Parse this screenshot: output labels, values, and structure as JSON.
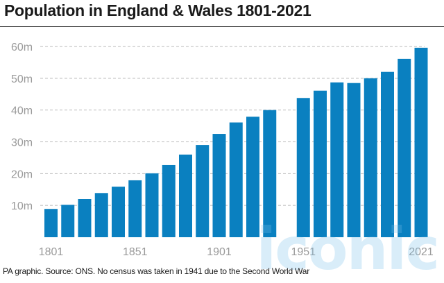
{
  "header": {
    "title": "Population in England & Wales 1801-2021"
  },
  "footer": {
    "source": "PA graphic. Source: ONS. No census was taken in 1941 due to the Second World War"
  },
  "watermark": {
    "text": "iconic"
  },
  "colors": {
    "bar": "#0a80c0",
    "grid": "#b8b8b8",
    "tick_text": "#9a9a9a"
  },
  "chart_data": {
    "type": "bar",
    "title": "Population in England & Wales 1801-2021",
    "xlabel": "",
    "ylabel": "",
    "ylim": [
      0,
      60
    ],
    "y_unit": "m",
    "y_ticks": [
      10,
      20,
      30,
      40,
      50,
      60
    ],
    "y_tick_labels": [
      "10m",
      "20m",
      "30m",
      "40m",
      "50m",
      "60m"
    ],
    "x_tick_labels": [
      "1801",
      "1851",
      "1901",
      "1951",
      "2021"
    ],
    "grid": true,
    "categories": [
      "1801",
      "1811",
      "1821",
      "1831",
      "1841",
      "1851",
      "1861",
      "1871",
      "1881",
      "1891",
      "1901",
      "1911",
      "1921",
      "1931",
      "1941",
      "1951",
      "1961",
      "1971",
      "1981",
      "1991",
      "2001",
      "2011",
      "2021"
    ],
    "values": [
      8.9,
      10.2,
      12.0,
      13.9,
      15.9,
      17.9,
      20.1,
      22.7,
      26.0,
      29.0,
      32.5,
      36.1,
      37.9,
      40.0,
      null,
      43.8,
      46.1,
      48.7,
      48.5,
      50.0,
      52.0,
      56.1,
      59.6
    ]
  }
}
